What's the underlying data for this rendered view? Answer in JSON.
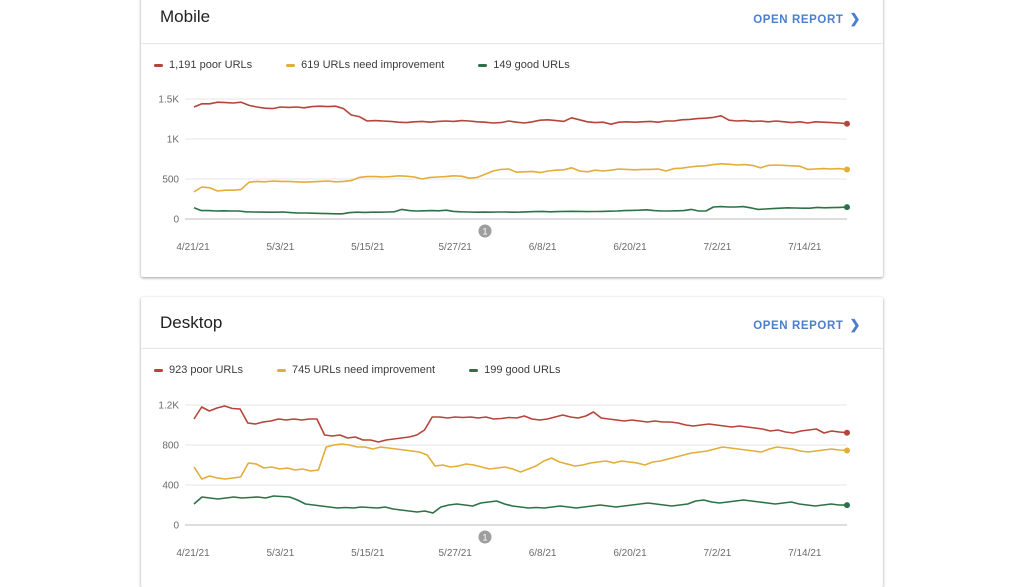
{
  "colors": {
    "poor": "#b5443a",
    "improve": "#e3ad3a",
    "good": "#2f7146",
    "link": "#4a7fd0"
  },
  "cards": [
    {
      "id": "mobile",
      "title": "Mobile",
      "open_report": "OPEN REPORT",
      "legend": {
        "poor": "1,191 poor URLs",
        "improve": "619 URLs need improvement",
        "good": "149 good URLs"
      },
      "annotation": "1",
      "chart_data": {
        "type": "line",
        "title": "Mobile",
        "x_tick_labels": [
          "4/21/21",
          "5/3/21",
          "5/15/21",
          "5/27/21",
          "6/8/21",
          "6/20/21",
          "7/2/21",
          "7/14/21"
        ],
        "y_tick_labels": [
          "0",
          "500",
          "1K",
          "1.5K"
        ],
        "ylim": [
          0,
          1500
        ],
        "series": [
          {
            "name": "poor",
            "values": [
              1400,
              1440,
              1440,
              1460,
              1455,
              1450,
              1460,
              1420,
              1400,
              1385,
              1380,
              1400,
              1395,
              1400,
              1390,
              1405,
              1410,
              1405,
              1410,
              1380,
              1300,
              1280,
              1225,
              1230,
              1225,
              1220,
              1210,
              1205,
              1215,
              1220,
              1210,
              1220,
              1225,
              1220,
              1230,
              1225,
              1215,
              1210,
              1200,
              1205,
              1225,
              1210,
              1200,
              1215,
              1235,
              1240,
              1230,
              1220,
              1265,
              1240,
              1215,
              1205,
              1210,
              1185,
              1210,
              1215,
              1210,
              1215,
              1220,
              1210,
              1225,
              1225,
              1240,
              1245,
              1255,
              1260,
              1270,
              1290,
              1235,
              1225,
              1230,
              1220,
              1225,
              1215,
              1225,
              1215,
              1205,
              1215,
              1200,
              1215,
              1210,
              1205,
              1200,
              1191
            ]
          },
          {
            "name": "improve",
            "values": [
              340,
              400,
              390,
              350,
              360,
              360,
              370,
              460,
              470,
              465,
              475,
              470,
              470,
              465,
              460,
              465,
              470,
              475,
              465,
              470,
              480,
              520,
              530,
              530,
              525,
              530,
              540,
              535,
              525,
              500,
              520,
              525,
              530,
              540,
              535,
              510,
              520,
              560,
              600,
              620,
              625,
              585,
              590,
              595,
              580,
              600,
              610,
              615,
              640,
              600,
              590,
              610,
              600,
              610,
              625,
              620,
              615,
              620,
              620,
              625,
              600,
              630,
              635,
              650,
              660,
              665,
              680,
              690,
              685,
              675,
              680,
              670,
              640,
              670,
              675,
              670,
              665,
              660,
              620,
              625,
              630,
              625,
              630,
              619
            ]
          },
          {
            "name": "good",
            "values": [
              140,
              105,
              105,
              100,
              102,
              100,
              100,
              90,
              88,
              86,
              85,
              85,
              87,
              80,
              75,
              75,
              72,
              70,
              68,
              65,
              65,
              80,
              85,
              82,
              85,
              85,
              88,
              90,
              120,
              105,
              100,
              102,
              105,
              102,
              110,
              95,
              90,
              88,
              85,
              86,
              85,
              87,
              88,
              85,
              86,
              90,
              92,
              95,
              90,
              92,
              95,
              96,
              95,
              92,
              94,
              95,
              98,
              100,
              105,
              108,
              110,
              115,
              105,
              100,
              100,
              102,
              105,
              120,
              100,
              100,
              150,
              155,
              150,
              150,
              155,
              140,
              120,
              125,
              130,
              135,
              140,
              138,
              135,
              135,
              145,
              140,
              142,
              145,
              149
            ]
          }
        ]
      }
    },
    {
      "id": "desktop",
      "title": "Desktop",
      "open_report": "OPEN REPORT",
      "legend": {
        "poor": "923 poor URLs",
        "improve": "745 URLs need improvement",
        "good": "199 good URLs"
      },
      "annotation": "1",
      "chart_data": {
        "type": "line",
        "title": "Desktop",
        "x_tick_labels": [
          "4/21/21",
          "5/3/21",
          "5/15/21",
          "5/27/21",
          "6/8/21",
          "6/20/21",
          "7/2/21",
          "7/14/21"
        ],
        "y_tick_labels": [
          "0",
          "400",
          "800",
          "1.2K"
        ],
        "ylim": [
          0,
          1200
        ],
        "series": [
          {
            "name": "poor",
            "values": [
              1060,
              1180,
              1140,
              1170,
              1190,
              1165,
              1160,
              1020,
              1010,
              1030,
              1040,
              1060,
              1050,
              1060,
              1050,
              1060,
              1060,
              900,
              890,
              900,
              870,
              880,
              850,
              850,
              830,
              850,
              860,
              870,
              880,
              900,
              950,
              1080,
              1080,
              1070,
              1080,
              1075,
              1080,
              1070,
              1080,
              1060,
              1065,
              1075,
              1070,
              1090,
              1060,
              1050,
              1060,
              1080,
              1100,
              1080,
              1070,
              1090,
              1130,
              1070,
              1060,
              1050,
              1040,
              1050,
              1040,
              1030,
              1040,
              1030,
              1030,
              1020,
              1000,
              990,
              1000,
              1010,
              1000,
              990,
              980,
              990,
              980,
              970,
              960,
              940,
              950,
              930,
              920,
              940,
              950,
              960,
              920,
              940,
              930,
              923
            ]
          },
          {
            "name": "improve",
            "values": [
              580,
              460,
              490,
              470,
              460,
              470,
              480,
              620,
              610,
              570,
              580,
              560,
              570,
              550,
              560,
              540,
              550,
              780,
              800,
              810,
              800,
              780,
              780,
              760,
              780,
              770,
              760,
              750,
              740,
              730,
              700,
              590,
              600,
              580,
              590,
              610,
              600,
              580,
              560,
              570,
              580,
              560,
              530,
              560,
              590,
              640,
              670,
              630,
              610,
              590,
              600,
              620,
              630,
              640,
              620,
              640,
              630,
              620,
              600,
              630,
              640,
              660,
              680,
              700,
              720,
              730,
              740,
              760,
              780,
              770,
              760,
              750,
              740,
              730,
              760,
              780,
              770,
              760,
              740,
              730,
              740,
              750,
              760,
              750,
              745
            ]
          },
          {
            "name": "good",
            "values": [
              210,
              280,
              270,
              260,
              270,
              280,
              270,
              275,
              280,
              270,
              290,
              285,
              280,
              250,
              210,
              200,
              190,
              180,
              170,
              175,
              170,
              180,
              175,
              170,
              180,
              160,
              150,
              140,
              130,
              140,
              120,
              180,
              200,
              210,
              200,
              190,
              220,
              230,
              240,
              210,
              190,
              180,
              170,
              175,
              170,
              180,
              190,
              180,
              170,
              180,
              190,
              200,
              190,
              180,
              190,
              200,
              210,
              220,
              210,
              200,
              190,
              200,
              210,
              240,
              250,
              230,
              220,
              230,
              240,
              250,
              240,
              230,
              220,
              210,
              220,
              230,
              210,
              200,
              190,
              200,
              210,
              200,
              199
            ]
          }
        ]
      }
    }
  ]
}
